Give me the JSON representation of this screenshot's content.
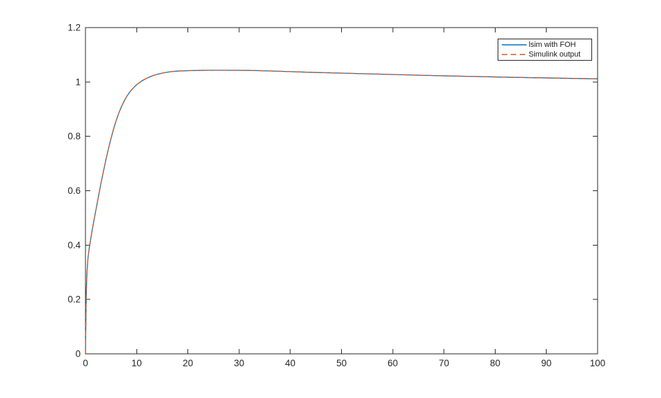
{
  "figure": {
    "background": "#ffffff",
    "axes_color": "#262626",
    "tick_label_color": "#262626"
  },
  "chart_data": {
    "type": "line",
    "title": "",
    "xlabel": "",
    "ylabel": "",
    "xlim": [
      0,
      100
    ],
    "ylim": [
      0,
      1.2
    ],
    "grid": false,
    "box": true,
    "xticks": {
      "values": [
        0,
        10,
        20,
        30,
        40,
        50,
        60,
        70,
        80,
        90,
        100
      ],
      "labels": [
        "0",
        "10",
        "20",
        "30",
        "40",
        "50",
        "60",
        "70",
        "80",
        "90",
        "100"
      ]
    },
    "yticks": {
      "values": [
        0,
        0.2,
        0.4,
        0.6,
        0.8,
        1.0,
        1.2
      ],
      "labels": [
        "0",
        "0.2",
        "0.4",
        "0.6",
        "0.8",
        "1",
        "1.2"
      ]
    },
    "legend": {
      "position": "northeast",
      "border_color": "#262626",
      "background": "#ffffff"
    },
    "x": [
      0,
      0.15,
      0.3,
      0.5,
      0.75,
      1,
      1.5,
      2,
      2.5,
      3,
      3.5,
      4,
      4.5,
      5,
      5.5,
      6,
      6.5,
      7,
      7.5,
      8,
      8.5,
      9,
      9.5,
      10,
      11,
      12,
      13,
      14,
      15,
      16,
      17,
      18,
      19,
      20,
      22,
      24,
      28,
      32,
      36,
      40,
      45,
      50,
      55,
      60,
      65,
      70,
      75,
      80,
      85,
      90,
      95,
      100
    ],
    "series": [
      {
        "name": "lsim with FOH",
        "color": "#0072BD",
        "line_style": "solid",
        "values": [
          0,
          0.22,
          0.3,
          0.355,
          0.39,
          0.42,
          0.475,
          0.525,
          0.575,
          0.625,
          0.67,
          0.715,
          0.755,
          0.793,
          0.828,
          0.858,
          0.885,
          0.908,
          0.928,
          0.945,
          0.959,
          0.971,
          0.981,
          0.99,
          1.004,
          1.014,
          1.022,
          1.028,
          1.0325,
          1.036,
          1.0385,
          1.04,
          1.041,
          1.0415,
          1.0425,
          1.043,
          1.043,
          1.0425,
          1.0405,
          1.038,
          1.035,
          1.0325,
          1.03,
          1.0275,
          1.025,
          1.0225,
          1.0205,
          1.0185,
          1.0165,
          1.015,
          1.013,
          1.0115
        ]
      },
      {
        "name": "Simulink output",
        "color": "#D95319",
        "line_style": "dashed",
        "values": [
          0,
          0.22,
          0.3,
          0.355,
          0.39,
          0.42,
          0.475,
          0.525,
          0.575,
          0.625,
          0.67,
          0.715,
          0.755,
          0.793,
          0.828,
          0.858,
          0.885,
          0.908,
          0.928,
          0.945,
          0.959,
          0.971,
          0.981,
          0.99,
          1.004,
          1.014,
          1.022,
          1.028,
          1.0325,
          1.036,
          1.0385,
          1.04,
          1.041,
          1.0415,
          1.0425,
          1.043,
          1.043,
          1.0425,
          1.0405,
          1.038,
          1.035,
          1.0325,
          1.03,
          1.0275,
          1.025,
          1.0225,
          1.0205,
          1.0185,
          1.0165,
          1.015,
          1.013,
          1.0115
        ]
      }
    ]
  }
}
